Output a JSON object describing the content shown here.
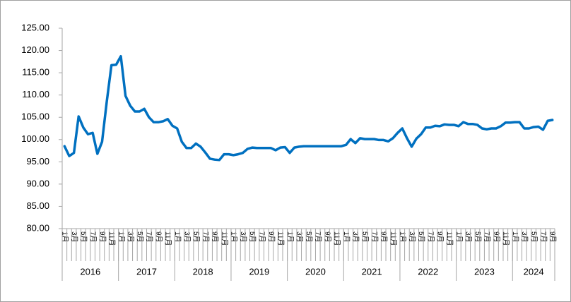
{
  "chart_data": {
    "type": "line",
    "categories": [
      "1月",
      null,
      "3月",
      null,
      "5月",
      null,
      "7月",
      null,
      "9月",
      null,
      "11月",
      null,
      "1月",
      null,
      "3月",
      null,
      "5月",
      null,
      "7月",
      null,
      "9月",
      null,
      "11月",
      null,
      "1月",
      null,
      "3月",
      null,
      "5月",
      null,
      "7月",
      null,
      "9月",
      null,
      "11月",
      null,
      "1月",
      null,
      "3月",
      null,
      "5月",
      null,
      "7月",
      null,
      "9月",
      null,
      "11月",
      null,
      "1月",
      null,
      "3月",
      null,
      "5月",
      null,
      "7月",
      null,
      "9月",
      null,
      "11月",
      null,
      "1月",
      null,
      "3月",
      null,
      "5月",
      null,
      "7月",
      null,
      "9月",
      null,
      "11月",
      null,
      "1月",
      null,
      "3月",
      null,
      "5月",
      null,
      "7月",
      null,
      "9月",
      null,
      "11月",
      null,
      "1月",
      null,
      "3月",
      null,
      "5月",
      null,
      "7月",
      null,
      "9月",
      null,
      "11月",
      null,
      "1月",
      null,
      "3月",
      null,
      "5月",
      null,
      "7月",
      null,
      "9月"
    ],
    "groups": [
      "2016",
      "2017",
      "2018",
      "2019",
      "2020",
      "2021",
      "2022",
      "2023",
      "2024"
    ],
    "values": [
      98.5,
      96.3,
      97,
      105.2,
      102.7,
      101.2,
      101.5,
      96.8,
      99.5,
      108.5,
      116.7,
      116.8,
      118.7,
      109.8,
      107.6,
      106.3,
      106.3,
      106.9,
      105,
      103.9,
      103.9,
      104.1,
      104.6,
      103.1,
      102.5,
      99.5,
      98.1,
      98.1,
      99.1,
      98.4,
      97.1,
      95.7,
      95.5,
      95.4,
      96.7,
      96.7,
      96.5,
      96.7,
      97,
      97.9,
      98.2,
      98.1,
      98.1,
      98.1,
      98.1,
      97.6,
      98.2,
      98.3,
      97,
      98.2,
      98.4,
      98.5,
      98.5,
      98.5,
      98.5,
      98.5,
      98.5,
      98.5,
      98.5,
      98.5,
      98.8,
      100.1,
      99.2,
      100.3,
      100.1,
      100.1,
      100.1,
      99.9,
      99.9,
      99.6,
      100.3,
      101.5,
      102.5,
      100.3,
      98.4,
      100.2,
      101.2,
      102.7,
      102.7,
      103.1,
      103,
      103.4,
      103.3,
      103.3,
      103,
      103.9,
      103.5,
      103.5,
      103.3,
      102.5,
      102.3,
      102.5,
      102.5,
      103,
      103.8,
      103.8,
      103.9,
      103.9,
      102.5,
      102.5,
      102.8,
      102.9,
      102.2,
      104.2,
      104.4
    ],
    "color": "#0070c0",
    "ylim": [
      80,
      125
    ],
    "yticks": [
      {
        "value": 80,
        "label": "80.00"
      },
      {
        "value": 85,
        "label": "85.00"
      },
      {
        "value": 90,
        "label": "90.00"
      },
      {
        "value": 95,
        "label": "95.00"
      },
      {
        "value": 100,
        "label": "100.00"
      },
      {
        "value": 105,
        "label": "105.00"
      },
      {
        "value": 110,
        "label": "110.00"
      },
      {
        "value": 115,
        "label": "115.00"
      },
      {
        "value": 120,
        "label": "120.00"
      },
      {
        "value": 125,
        "label": "125.00"
      }
    ],
    "grid": false
  }
}
